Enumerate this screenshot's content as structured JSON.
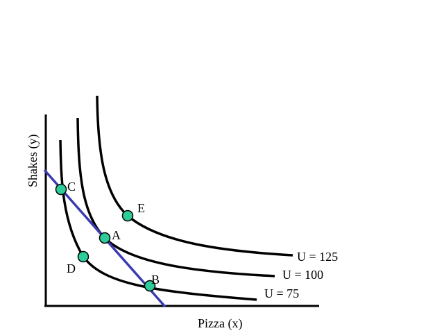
{
  "axes": {
    "xlabel": "Pizza (x)",
    "ylabel": "Shakes (y)"
  },
  "curves": [
    {
      "label": "U = 75"
    },
    {
      "label": "U = 100"
    },
    {
      "label": "U = 125"
    }
  ],
  "points": [
    {
      "label": "A"
    },
    {
      "label": "B"
    },
    {
      "label": "C"
    },
    {
      "label": "D"
    },
    {
      "label": "E"
    }
  ],
  "colors": {
    "budget_line": "#3b3bb0",
    "points": "#2ecc9a",
    "curves": "#000000"
  }
}
